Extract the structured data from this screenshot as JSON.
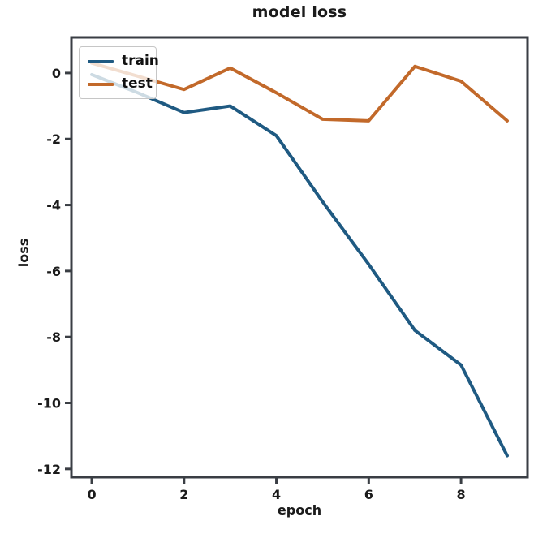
{
  "title": "model loss",
  "axes": {
    "xlabel": "epoch",
    "ylabel": "loss"
  },
  "legend": {
    "position": "upper left",
    "items": [
      {
        "label": "train",
        "color": "#1f5a82"
      },
      {
        "label": "test",
        "color": "#c2692a"
      }
    ]
  },
  "colors": {
    "background": "#ffffff",
    "spine": "#3a3e44",
    "tick_text": "#1b1b1b",
    "train_line": "#1f5a82",
    "test_line": "#c2692a"
  },
  "chart_data": {
    "type": "line",
    "title": "model loss",
    "xlabel": "epoch",
    "ylabel": "loss",
    "x": [
      0,
      1,
      2,
      3,
      4,
      5,
      6,
      7,
      8,
      9
    ],
    "series": [
      {
        "name": "train",
        "color": "#1f5a82",
        "values": [
          -0.05,
          -0.6,
          -1.2,
          -1.0,
          -1.9,
          -3.9,
          -5.8,
          -7.8,
          -8.85,
          -11.6
        ]
      },
      {
        "name": "test",
        "color": "#c2692a",
        "values": [
          0.3,
          -0.1,
          -0.5,
          0.15,
          -0.6,
          -1.4,
          -1.45,
          0.2,
          -0.25,
          -1.45
        ]
      }
    ],
    "xticks": [
      0,
      2,
      4,
      6,
      8
    ],
    "yticks": [
      0,
      -2,
      -4,
      -6,
      -8,
      -10,
      -12
    ],
    "xlim": [
      -0.44,
      9.44
    ],
    "ylim": [
      -12.25,
      1.08
    ],
    "grid": false,
    "legend_position": "upper left"
  }
}
